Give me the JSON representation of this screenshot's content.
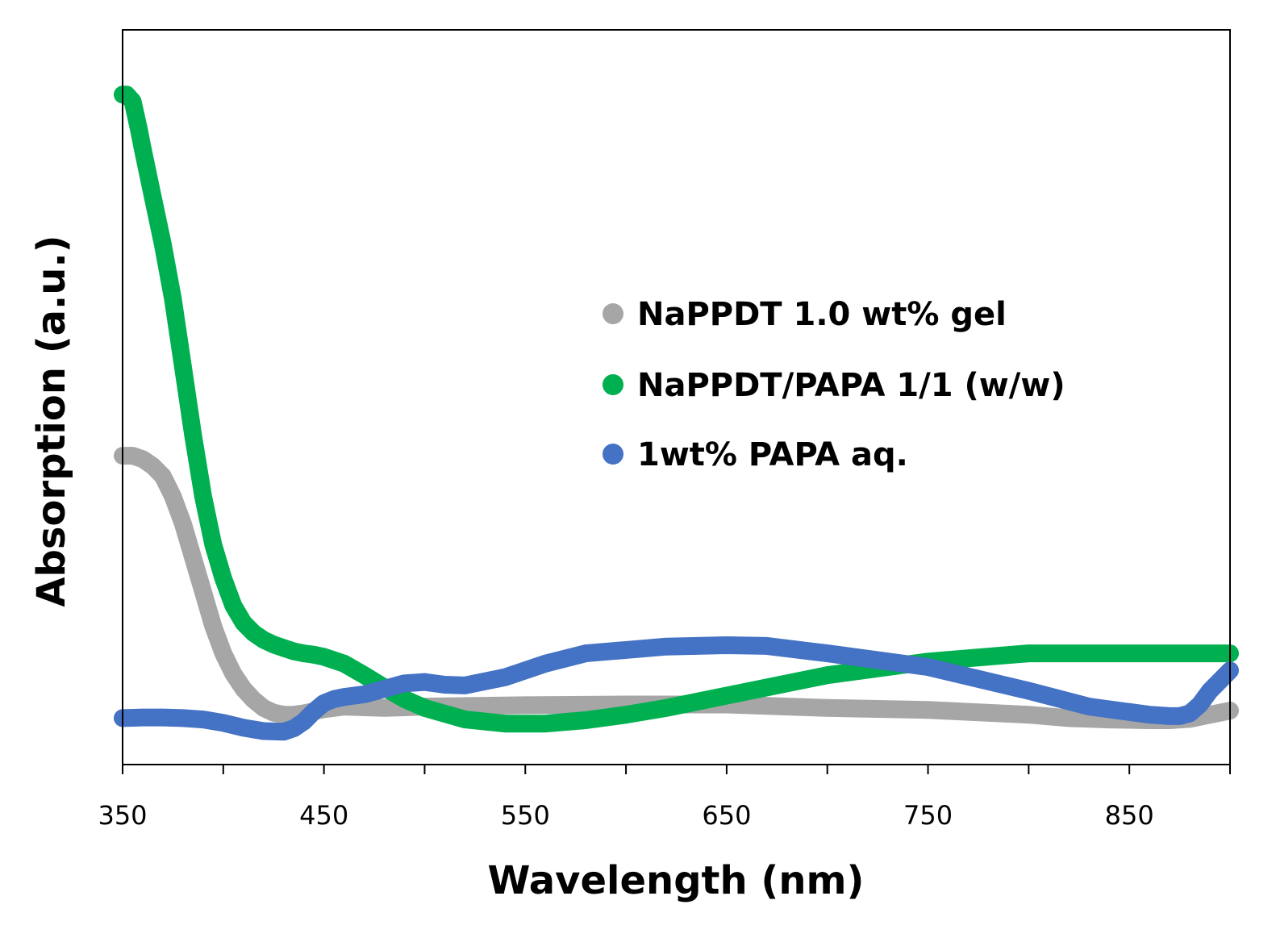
{
  "chart_data": {
    "type": "line",
    "title": "",
    "xlabel": "Wavelength (nm)",
    "ylabel": "Absorption (a.u.)",
    "xlim": [
      350,
      900
    ],
    "ylim": [
      0,
      1
    ],
    "x_ticks": [
      "350",
      "450",
      "550",
      "650",
      "750",
      "850"
    ],
    "y_ticks": [],
    "grid": false,
    "legend_position": "center-right",
    "series": [
      {
        "name": "NaPPDT 1.0 wt% gel",
        "color": "#a6a6a6",
        "x": [
          350,
          355,
          360,
          365,
          370,
          375,
          380,
          385,
          390,
          395,
          400,
          405,
          410,
          415,
          420,
          425,
          430,
          435,
          440,
          450,
          460,
          480,
          500,
          550,
          600,
          650,
          700,
          750,
          800,
          820,
          840,
          860,
          870,
          880,
          890,
          900
        ],
        "y": [
          0.42,
          0.42,
          0.415,
          0.405,
          0.39,
          0.36,
          0.32,
          0.27,
          0.22,
          0.17,
          0.13,
          0.1,
          0.078,
          0.062,
          0.05,
          0.043,
          0.04,
          0.04,
          0.042,
          0.048,
          0.052,
          0.05,
          0.052,
          0.054,
          0.055,
          0.055,
          0.05,
          0.047,
          0.04,
          0.035,
          0.033,
          0.032,
          0.032,
          0.034,
          0.04,
          0.046
        ]
      },
      {
        "name": "NaPPDT/PAPA 1/1 (w/w)",
        "color": "#00b050",
        "x": [
          350,
          352,
          355,
          358,
          360,
          365,
          370,
          375,
          380,
          385,
          390,
          395,
          400,
          405,
          410,
          415,
          420,
          425,
          430,
          435,
          440,
          445,
          450,
          460,
          470,
          480,
          490,
          500,
          520,
          540,
          560,
          580,
          600,
          620,
          650,
          700,
          750,
          800,
          850,
          900
        ],
        "y": [
          0.95,
          0.95,
          0.94,
          0.9,
          0.87,
          0.8,
          0.73,
          0.65,
          0.55,
          0.45,
          0.36,
          0.29,
          0.24,
          0.2,
          0.175,
          0.16,
          0.15,
          0.143,
          0.138,
          0.133,
          0.13,
          0.128,
          0.125,
          0.115,
          0.098,
          0.08,
          0.063,
          0.05,
          0.033,
          0.027,
          0.027,
          0.032,
          0.04,
          0.05,
          0.068,
          0.098,
          0.118,
          0.13,
          0.13,
          0.13
        ]
      },
      {
        "name": "1wt% PAPA aq.",
        "color": "#4472c4",
        "x": [
          350,
          360,
          370,
          380,
          390,
          400,
          410,
          420,
          430,
          435,
          440,
          445,
          450,
          455,
          460,
          470,
          480,
          490,
          500,
          510,
          520,
          540,
          560,
          580,
          600,
          620,
          650,
          670,
          700,
          750,
          800,
          830,
          860,
          870,
          875,
          880,
          885,
          890,
          900
        ],
        "y": [
          0.035,
          0.036,
          0.036,
          0.035,
          0.033,
          0.028,
          0.021,
          0.016,
          0.015,
          0.02,
          0.03,
          0.045,
          0.057,
          0.063,
          0.066,
          0.07,
          0.078,
          0.086,
          0.088,
          0.084,
          0.083,
          0.095,
          0.115,
          0.13,
          0.135,
          0.14,
          0.142,
          0.141,
          0.13,
          0.11,
          0.075,
          0.052,
          0.04,
          0.038,
          0.038,
          0.042,
          0.055,
          0.075,
          0.105
        ]
      }
    ]
  }
}
